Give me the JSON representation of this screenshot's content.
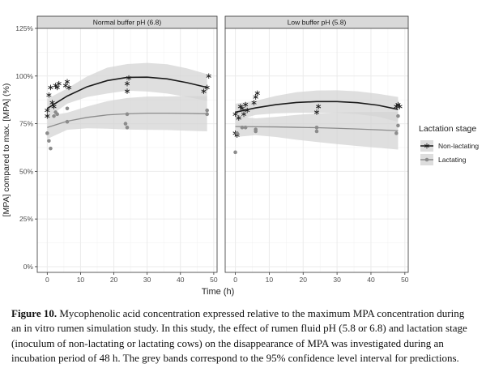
{
  "figure": {
    "caption_label": "Figure 10.",
    "caption_text": "Mycophenolic acid concentration expressed relative to the maximum MPA concentration during an in vitro rumen simulation study. In this study, the effect of rumen fluid pH (5.8 or 6.8) and lactation stage (inoculum of non-lactating or lactating cows) on the disappearance of MPA was investigated during an incubation period of 48 h. The grey bands correspond to the 95% confidence level interval for predictions."
  },
  "chart_data": {
    "type": "scatter",
    "xlabel": "Time (h)",
    "ylabel": "[MPA] compared to max. [MPA] (%)",
    "xlim": [
      -3,
      51
    ],
    "ylim": [
      -3,
      125
    ],
    "x_ticks": [
      0,
      10,
      20,
      30,
      40,
      50
    ],
    "y_ticks": [
      0,
      25,
      50,
      75,
      100,
      125
    ],
    "y_tick_labels": [
      "0%",
      "25%",
      "50%",
      "75%",
      "100%",
      "125%"
    ],
    "legend_title": "Lactation stage",
    "legend_position": "right",
    "grid": true,
    "colors": {
      "non_lactating": "#1a1a1a",
      "lactating": "#8c8c8c",
      "band": "#d4d4d4",
      "panel_bg": "#ffffff",
      "grid": "#ebebeb",
      "strip_bg": "#d9d9d9"
    },
    "panels": [
      {
        "title": "Normal buffer pH (6.8)",
        "series": [
          {
            "name": "Non-lactating",
            "marker": "asterisk",
            "points": [
              [
                0,
                82
              ],
              [
                0,
                79
              ],
              [
                0.5,
                90
              ],
              [
                1,
                94
              ],
              [
                1.5,
                86
              ],
              [
                2,
                84
              ],
              [
                2.5,
                95
              ],
              [
                3,
                94
              ],
              [
                3.5,
                96
              ],
              [
                5.5,
                95
              ],
              [
                6,
                97
              ],
              [
                6.5,
                94
              ],
              [
                24,
                92
              ],
              [
                24,
                96
              ],
              [
                24.5,
                99
              ],
              [
                47,
                92
              ],
              [
                48,
                94
              ],
              [
                48.5,
                100
              ]
            ],
            "fit": [
              [
                0,
                83
              ],
              [
                6,
                89.5
              ],
              [
                12,
                94.4
              ],
              [
                18,
                97.6
              ],
              [
                24,
                99.3
              ],
              [
                30,
                99.4
              ],
              [
                36,
                98.5
              ],
              [
                42,
                96.5
              ],
              [
                48,
                94
              ]
            ],
            "band_upper": [
              [
                0,
                88
              ],
              [
                6,
                93.5
              ],
              [
                12,
                99.8
              ],
              [
                18,
                104.4
              ],
              [
                24,
                106.3
              ],
              [
                30,
                106.9
              ],
              [
                36,
                106.2
              ],
              [
                42,
                104
              ],
              [
                48,
                101
              ]
            ],
            "band_lower": [
              [
                0,
                78
              ],
              [
                6,
                85.5
              ],
              [
                12,
                89
              ],
              [
                18,
                90.8
              ],
              [
                24,
                92.3
              ],
              [
                30,
                91.9
              ],
              [
                36,
                90.8
              ],
              [
                42,
                89
              ],
              [
                48,
                87
              ]
            ]
          },
          {
            "name": "Lactating",
            "marker": "circle",
            "points": [
              [
                0,
                70
              ],
              [
                0.5,
                66
              ],
              [
                1,
                62
              ],
              [
                2,
                79
              ],
              [
                2.5,
                81
              ],
              [
                3,
                80
              ],
              [
                6,
                76
              ],
              [
                6,
                83
              ],
              [
                23.5,
                75
              ],
              [
                24,
                73
              ],
              [
                24,
                80
              ],
              [
                48,
                80
              ],
              [
                48,
                82
              ]
            ],
            "fit": [
              [
                0,
                73
              ],
              [
                6,
                76.3
              ],
              [
                12,
                78.3
              ],
              [
                18,
                79.6
              ],
              [
                24,
                80.2
              ],
              [
                30,
                80.5
              ],
              [
                36,
                80.5
              ],
              [
                42,
                80.4
              ],
              [
                48,
                80.2
              ]
            ],
            "band_upper": [
              [
                0,
                79
              ],
              [
                6,
                80.8
              ],
              [
                12,
                84
              ],
              [
                18,
                86.8
              ],
              [
                24,
                88.5
              ],
              [
                30,
                89.2
              ],
              [
                36,
                89.3
              ],
              [
                42,
                89.5
              ],
              [
                48,
                89.5
              ]
            ],
            "band_lower": [
              [
                0,
                67
              ],
              [
                6,
                71.8
              ],
              [
                12,
                72.6
              ],
              [
                18,
                72.4
              ],
              [
                24,
                71.9
              ],
              [
                30,
                71.8
              ],
              [
                36,
                71.7
              ],
              [
                42,
                71.3
              ],
              [
                48,
                71
              ]
            ]
          }
        ]
      },
      {
        "title": "Low buffer pH (5.8)",
        "series": [
          {
            "name": "Non-lactating",
            "marker": "asterisk",
            "points": [
              [
                0,
                80
              ],
              [
                0,
                70
              ],
              [
                0.5,
                69
              ],
              [
                1,
                78
              ],
              [
                1.5,
                84
              ],
              [
                2,
                83
              ],
              [
                2.5,
                80
              ],
              [
                3,
                85
              ],
              [
                3.5,
                82
              ],
              [
                5.5,
                86
              ],
              [
                6,
                89
              ],
              [
                6.5,
                91
              ],
              [
                24,
                81
              ],
              [
                24.5,
                84
              ],
              [
                47.5,
                84
              ],
              [
                48,
                85
              ],
              [
                48.5,
                84
              ]
            ],
            "fit": [
              [
                0,
                81
              ],
              [
                6,
                83.3
              ],
              [
                12,
                85
              ],
              [
                18,
                86.1
              ],
              [
                24,
                86.6
              ],
              [
                30,
                86.6
              ],
              [
                36,
                86
              ],
              [
                42,
                84.7
              ],
              [
                48,
                82.5
              ]
            ],
            "band_upper": [
              [
                0,
                85.5
              ],
              [
                6,
                87
              ],
              [
                12,
                89.6
              ],
              [
                18,
                91.5
              ],
              [
                24,
                92.4
              ],
              [
                30,
                92.5
              ],
              [
                36,
                92
              ],
              [
                42,
                90.7
              ],
              [
                48,
                89
              ]
            ],
            "band_lower": [
              [
                0,
                76.5
              ],
              [
                6,
                79.6
              ],
              [
                12,
                80.4
              ],
              [
                18,
                80.7
              ],
              [
                24,
                80.8
              ],
              [
                30,
                80.7
              ],
              [
                36,
                80
              ],
              [
                42,
                78.7
              ],
              [
                48,
                76
              ]
            ]
          },
          {
            "name": "Lactating",
            "marker": "circle",
            "points": [
              [
                0,
                60
              ],
              [
                0.5,
                70
              ],
              [
                2,
                73
              ],
              [
                3,
                73
              ],
              [
                6,
                71
              ],
              [
                6,
                72
              ],
              [
                24,
                71
              ],
              [
                24,
                73
              ],
              [
                47.5,
                70
              ],
              [
                48,
                74
              ],
              [
                48,
                79
              ]
            ],
            "fit": [
              [
                0,
                73.5
              ],
              [
                6,
                73.4
              ],
              [
                12,
                73.3
              ],
              [
                18,
                73.1
              ],
              [
                24,
                72.9
              ],
              [
                30,
                72.6
              ],
              [
                36,
                72.2
              ],
              [
                42,
                71.8
              ],
              [
                48,
                71.3
              ]
            ],
            "band_upper": [
              [
                0,
                79
              ],
              [
                6,
                77.8
              ],
              [
                12,
                78.6
              ],
              [
                18,
                79.6
              ],
              [
                24,
                80.4
              ],
              [
                30,
                80.9
              ],
              [
                36,
                81.1
              ],
              [
                42,
                81.2
              ],
              [
                48,
                81.2
              ]
            ],
            "band_lower": [
              [
                0,
                68
              ],
              [
                6,
                69
              ],
              [
                12,
                68
              ],
              [
                18,
                66.6
              ],
              [
                24,
                65.4
              ],
              [
                30,
                64.3
              ],
              [
                36,
                63.3
              ],
              [
                42,
                62.4
              ],
              [
                48,
                61.4
              ]
            ]
          }
        ]
      }
    ]
  }
}
